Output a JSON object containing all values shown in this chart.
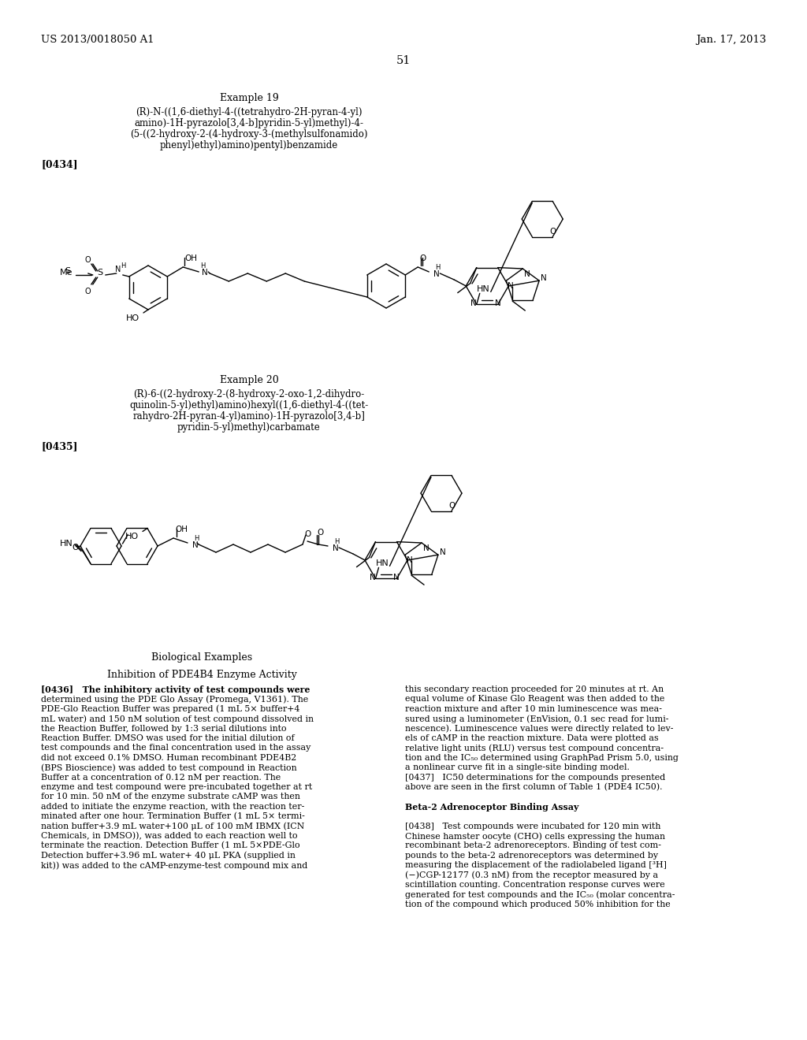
{
  "bg": "#ffffff",
  "header_left": "US 2013/0018050 A1",
  "header_right": "Jan. 17, 2013",
  "page_num": "51",
  "ex19_title": "Example 19",
  "ex19_line1": "(R)-N-((1,6-diethyl-4-((tetrahydro-2H-pyran-4-yl)",
  "ex19_line2": "amino)-1H-pyrazolo[3,4-b]pyridin-5-yl)methyl)-4-",
  "ex19_line3": "(5-((2-hydroxy-2-(4-hydroxy-3-(methylsulfonamido)",
  "ex19_line4": "phenyl)ethyl)amino)pentyl)benzamide",
  "ex19_ref": "[0434]",
  "ex20_title": "Example 20",
  "ex20_line1": "(R)-6-((2-hydroxy-2-(8-hydroxy-2-oxo-1,2-dihydro-",
  "ex20_line2": "quinolin-5-yl)ethyl)amino)hexyl((1,6-diethyl-4-((tet-",
  "ex20_line3": "rahydro-2H-pyran-4-yl)amino)-1H-pyrazolo[3,4-b]",
  "ex20_line4": "pyridin-5-yl)methyl)carbamate",
  "ex20_ref": "[0435]",
  "bio_section": "Biological Examples",
  "bio_subsection": "Inhibition of PDE4B4 Enzyme Activity",
  "left_col_lines": [
    "[0436]   The inhibitory activity of test compounds were",
    "determined using the PDE Glo Assay (Promega, V1361). The",
    "PDE-Glo Reaction Buffer was prepared (1 mL 5× buffer+4",
    "mL water) and 150 nM solution of test compound dissolved in",
    "the Reaction Buffer, followed by 1:3 serial dilutions into",
    "Reaction Buffer. DMSO was used for the initial dilution of",
    "test compounds and the final concentration used in the assay",
    "did not exceed 0.1% DMSO. Human recombinant PDE4B2",
    "(BPS Bioscience) was added to test compound in Reaction",
    "Buffer at a concentration of 0.12 nM per reaction. The",
    "enzyme and test compound were pre-incubated together at rt",
    "for 10 min. 50 nM of the enzyme substrate cAMP was then",
    "added to initiate the enzyme reaction, with the reaction ter-",
    "minated after one hour. Termination Buffer (1 mL 5× termi-",
    "nation buffer+3.9 mL water+100 μL of 100 mM IBMX (ICN",
    "Chemicals, in DMSO)), was added to each reaction well to",
    "terminate the reaction. Detection Buffer (1 mL 5×PDE-Glo",
    "Detection buffer+3.96 mL water+ 40 μL PKA (supplied in",
    "kit)) was added to the cAMP-enzyme-test compound mix and"
  ],
  "right_col_lines": [
    "this secondary reaction proceeded for 20 minutes at rt. An",
    "equal volume of Kinase Glo Reagent was then added to the",
    "reaction mixture and after 10 min luminescence was mea-",
    "sured using a luminometer (EnVision, 0.1 sec read for lumi-",
    "nescence). Luminescence values were directly related to lev-",
    "els of cAMP in the reaction mixture. Data were plotted as",
    "relative light units (RLU) versus test compound concentra-",
    "tion and the IC₅₀ determined using GraphPad Prism 5.0, using",
    "a nonlinear curve fit in a single-site binding model.",
    "[0437]   IC50 determinations for the compounds presented",
    "above are seen in the first column of Table 1 (PDE4 IC50).",
    "",
    "Beta-2 Adrenoceptor Binding Assay",
    "",
    "[0438]   Test compounds were incubated for 120 min with",
    "Chinese hamster oocyte (CHO) cells expressing the human",
    "recombinant beta-2 adrenoreceptors. Binding of test com-",
    "pounds to the beta-2 adrenoreceptors was determined by",
    "measuring the displacement of the radiolabeled ligand [³H]",
    "(−)CGP-12177 (0.3 nM) from the receptor measured by a",
    "scintillation counting. Concentration response curves were",
    "generated for test compounds and the IC₅₀ (molar concentra-",
    "tion of the compound which produced 50% inhibition for the"
  ],
  "right_bold_lines": [
    12
  ],
  "left_bold_lines": [
    0
  ]
}
